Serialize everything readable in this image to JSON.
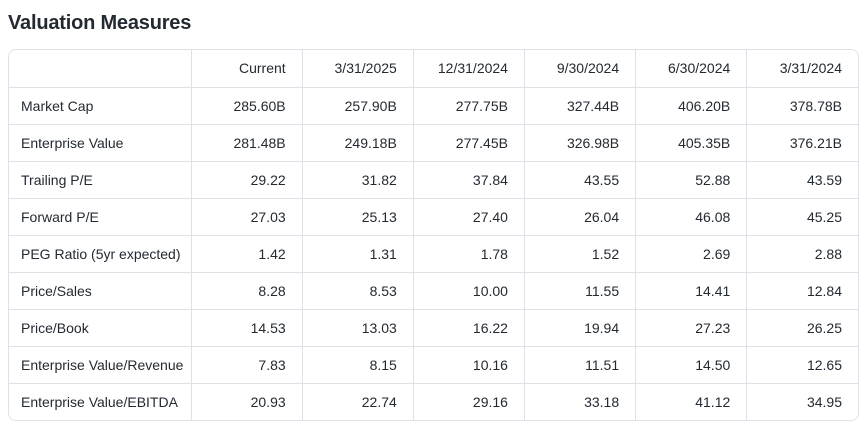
{
  "page": {
    "title": "Valuation Measures"
  },
  "colors": {
    "text": "#232a31",
    "border": "#dee1e7",
    "background": "#ffffff"
  },
  "table": {
    "columns": [
      "",
      "Current",
      "3/31/2025",
      "12/31/2024",
      "9/30/2024",
      "6/30/2024",
      "3/31/2024"
    ],
    "rows": [
      {
        "label": "Market Cap",
        "values": [
          "285.60B",
          "257.90B",
          "277.75B",
          "327.44B",
          "406.20B",
          "378.78B"
        ]
      },
      {
        "label": "Enterprise Value",
        "values": [
          "281.48B",
          "249.18B",
          "277.45B",
          "326.98B",
          "405.35B",
          "376.21B"
        ]
      },
      {
        "label": "Trailing P/E",
        "values": [
          "29.22",
          "31.82",
          "37.84",
          "43.55",
          "52.88",
          "43.59"
        ]
      },
      {
        "label": "Forward P/E",
        "values": [
          "27.03",
          "25.13",
          "27.40",
          "26.04",
          "46.08",
          "45.25"
        ]
      },
      {
        "label": "PEG Ratio (5yr expected)",
        "values": [
          "1.42",
          "1.31",
          "1.78",
          "1.52",
          "2.69",
          "2.88"
        ]
      },
      {
        "label": "Price/Sales",
        "values": [
          "8.28",
          "8.53",
          "10.00",
          "11.55",
          "14.41",
          "12.84"
        ]
      },
      {
        "label": "Price/Book",
        "values": [
          "14.53",
          "13.03",
          "16.22",
          "19.94",
          "27.23",
          "26.25"
        ]
      },
      {
        "label": "Enterprise Value/Revenue",
        "values": [
          "7.83",
          "8.15",
          "10.16",
          "11.51",
          "14.50",
          "12.65"
        ]
      },
      {
        "label": "Enterprise Value/EBITDA",
        "values": [
          "20.93",
          "22.74",
          "29.16",
          "33.18",
          "41.12",
          "34.95"
        ]
      }
    ]
  }
}
